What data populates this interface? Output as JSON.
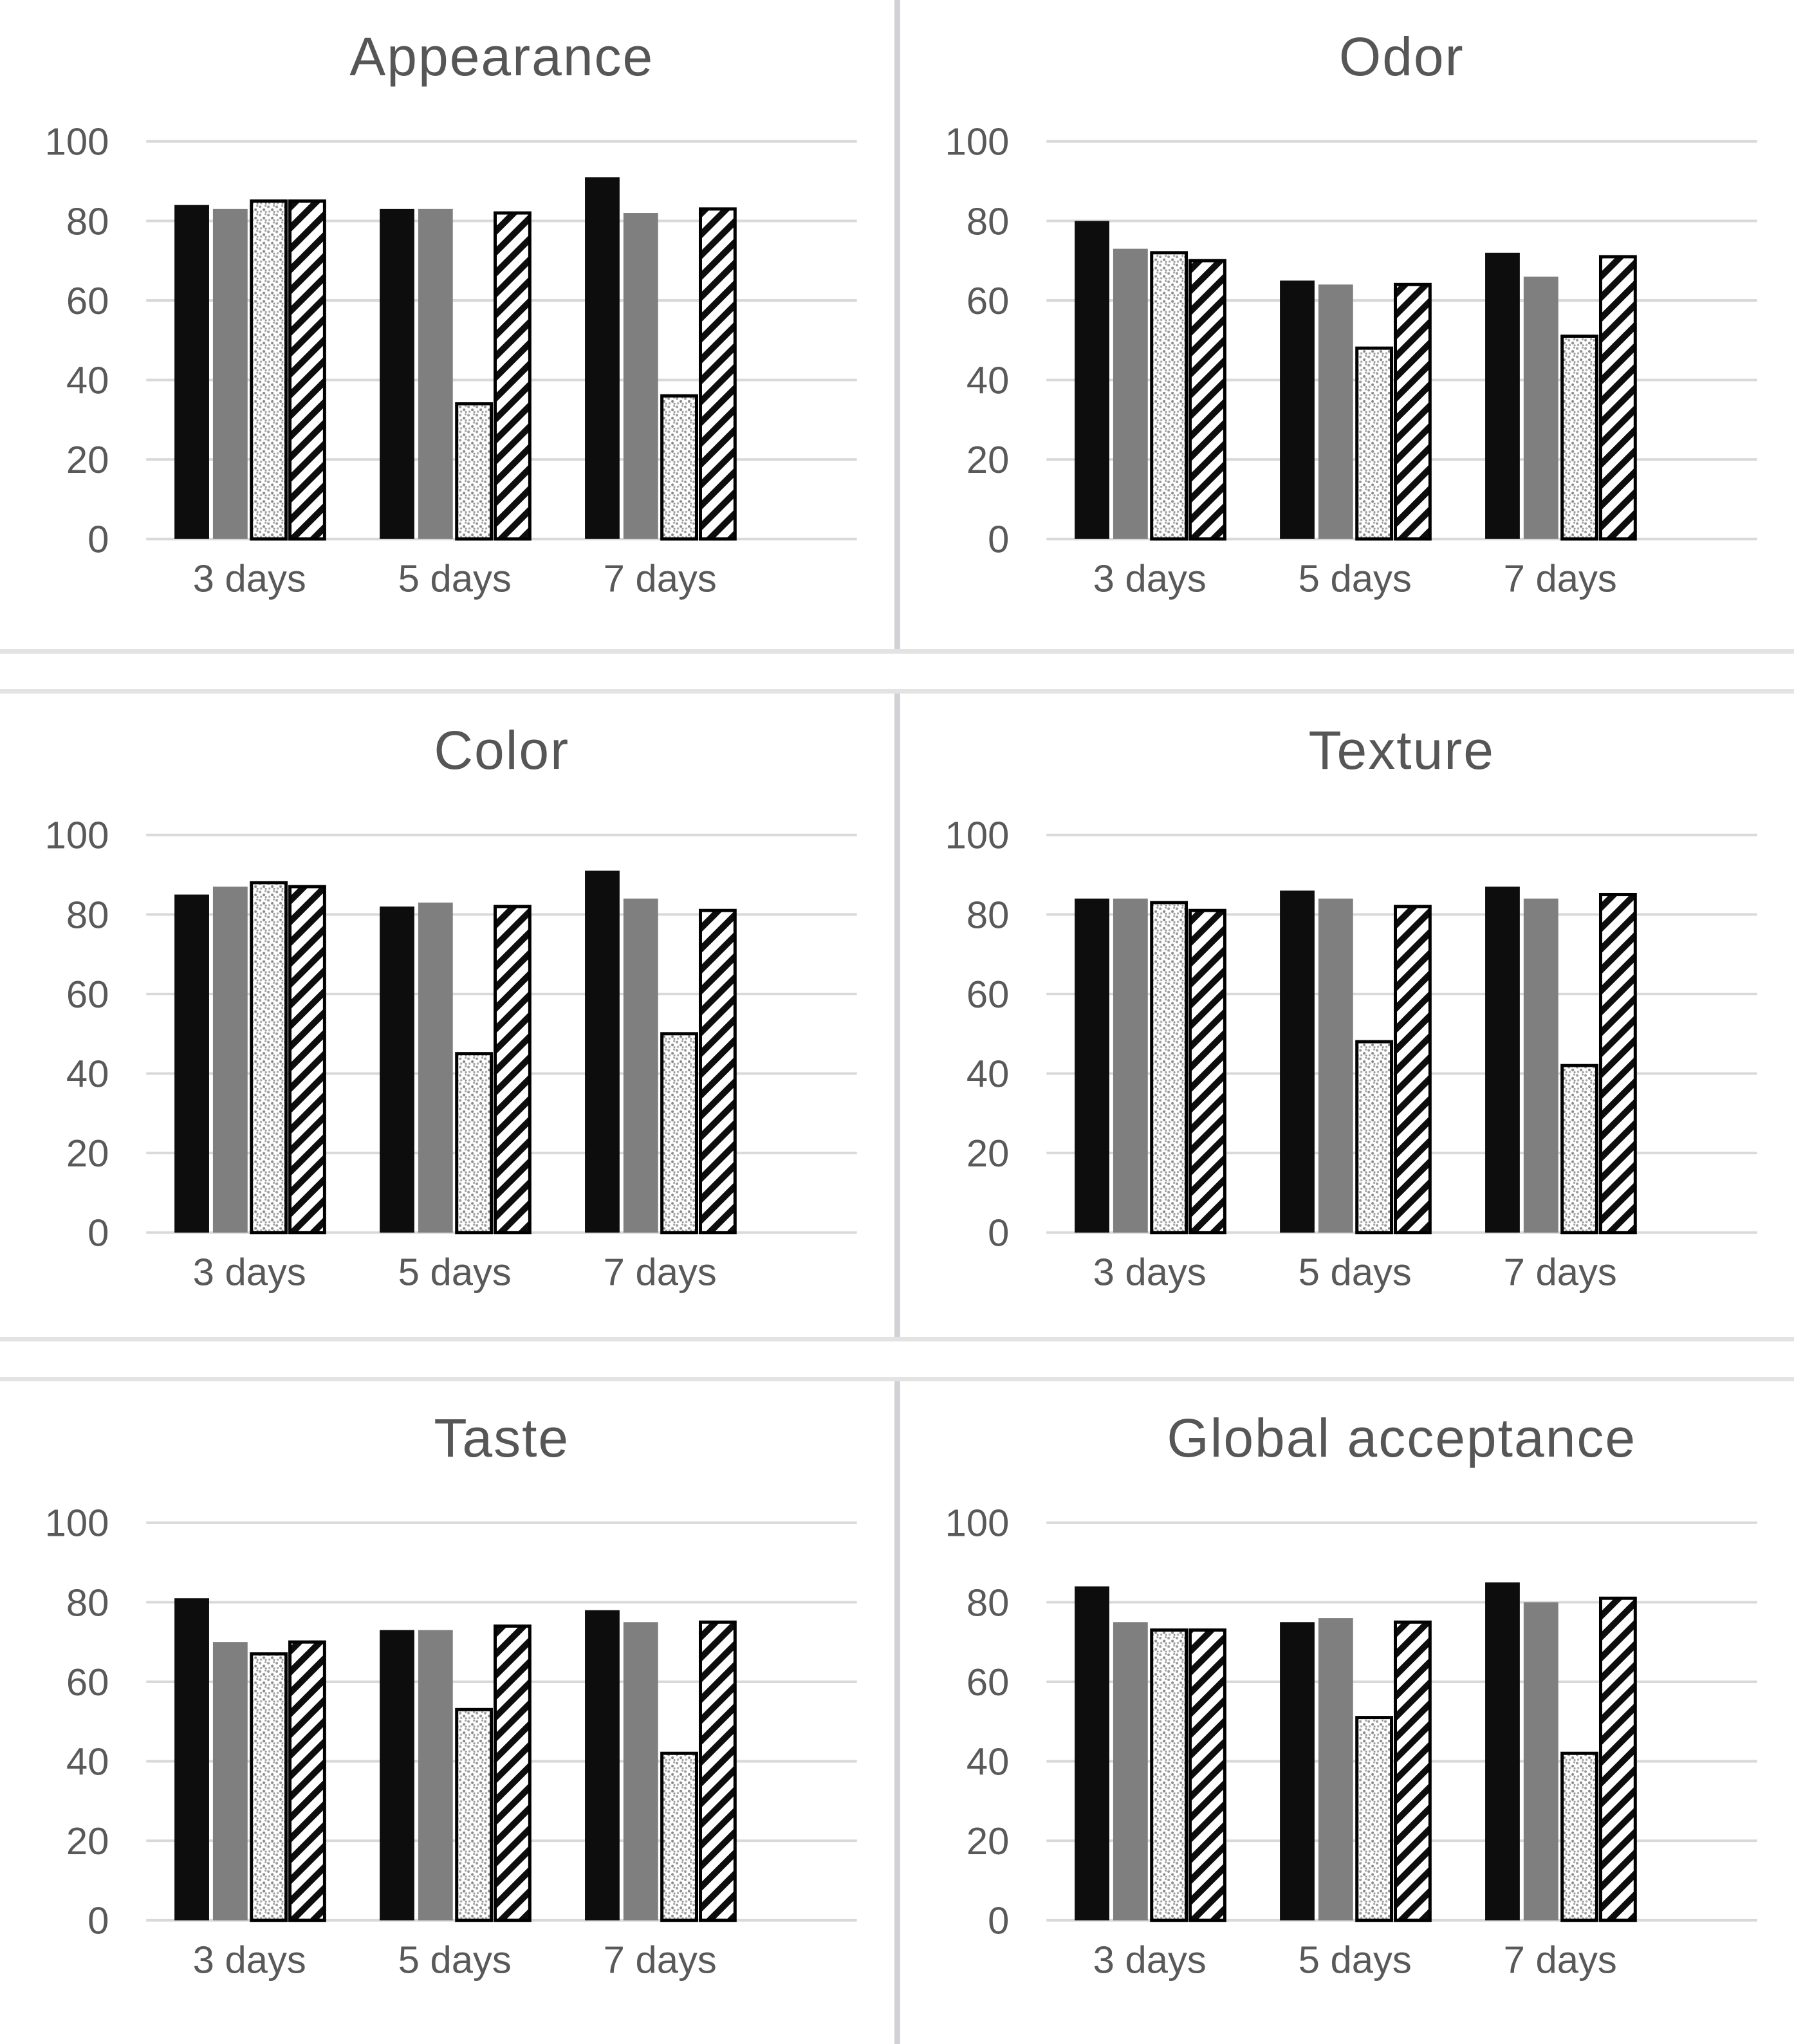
{
  "figure": {
    "description": "Six-panel grouped bar chart figure of sensory scores over storage time",
    "background": "#ffffff"
  },
  "colors": {
    "black_series": "#0d0d0d",
    "gray_series": "#7f7f7f",
    "pattern_stroke": "#000000",
    "pattern_background": "#ffffff",
    "gridline": "#d9d9d9",
    "axis_label": "#595959",
    "title": "#565656",
    "divider_vertical": "#d2d2d6",
    "divider_horizontal": "#e3e3e3"
  },
  "axis": {
    "yticks": [
      0,
      20,
      40,
      60,
      80,
      100
    ],
    "ylim": [
      0,
      100
    ],
    "categories": [
      "3 days",
      "5 days",
      "7 days"
    ],
    "grid": "horizontal",
    "legend": "none"
  },
  "chart_data": [
    {
      "type": "bar",
      "title": "Appearance",
      "categories": [
        "3 days",
        "5 days",
        "7 days"
      ],
      "ylim": [
        0,
        100
      ],
      "yticks": [
        0,
        20,
        40,
        60,
        80,
        100
      ],
      "series": [
        {
          "name": "solid black",
          "pattern": "solid-black",
          "values": [
            84,
            83,
            91
          ]
        },
        {
          "name": "solid gray",
          "pattern": "solid-gray",
          "values": [
            83,
            83,
            82
          ]
        },
        {
          "name": "dotted fill",
          "pattern": "dots",
          "values": [
            85,
            34,
            36
          ]
        },
        {
          "name": "diagonal hatch",
          "pattern": "hatch",
          "values": [
            85,
            82,
            83
          ]
        }
      ]
    },
    {
      "type": "bar",
      "title": "Odor",
      "categories": [
        "3 days",
        "5 days",
        "7 days"
      ],
      "ylim": [
        0,
        100
      ],
      "yticks": [
        0,
        20,
        40,
        60,
        80,
        100
      ],
      "series": [
        {
          "name": "solid black",
          "pattern": "solid-black",
          "values": [
            80,
            65,
            72
          ]
        },
        {
          "name": "solid gray",
          "pattern": "solid-gray",
          "values": [
            73,
            64,
            66
          ]
        },
        {
          "name": "dotted fill",
          "pattern": "dots",
          "values": [
            72,
            48,
            51
          ]
        },
        {
          "name": "diagonal hatch",
          "pattern": "hatch",
          "values": [
            70,
            64,
            71
          ]
        }
      ]
    },
    {
      "type": "bar",
      "title": "Color",
      "categories": [
        "3 days",
        "5 days",
        "7 days"
      ],
      "ylim": [
        0,
        100
      ],
      "yticks": [
        0,
        20,
        40,
        60,
        80,
        100
      ],
      "series": [
        {
          "name": "solid black",
          "pattern": "solid-black",
          "values": [
            85,
            82,
            91
          ]
        },
        {
          "name": "solid gray",
          "pattern": "solid-gray",
          "values": [
            87,
            83,
            84
          ]
        },
        {
          "name": "dotted fill",
          "pattern": "dots",
          "values": [
            88,
            45,
            50
          ]
        },
        {
          "name": "diagonal hatch",
          "pattern": "hatch",
          "values": [
            87,
            82,
            81
          ]
        }
      ]
    },
    {
      "type": "bar",
      "title": "Texture",
      "categories": [
        "3 days",
        "5 days",
        "7 days"
      ],
      "ylim": [
        0,
        100
      ],
      "yticks": [
        0,
        20,
        40,
        60,
        80,
        100
      ],
      "series": [
        {
          "name": "solid black",
          "pattern": "solid-black",
          "values": [
            84,
            86,
            87
          ]
        },
        {
          "name": "solid gray",
          "pattern": "solid-gray",
          "values": [
            84,
            84,
            84
          ]
        },
        {
          "name": "dotted fill",
          "pattern": "dots",
          "values": [
            83,
            48,
            42
          ]
        },
        {
          "name": "diagonal hatch",
          "pattern": "hatch",
          "values": [
            81,
            82,
            85
          ]
        }
      ]
    },
    {
      "type": "bar",
      "title": "Taste",
      "categories": [
        "3 days",
        "5 days",
        "7 days"
      ],
      "ylim": [
        0,
        100
      ],
      "yticks": [
        0,
        20,
        40,
        60,
        80,
        100
      ],
      "series": [
        {
          "name": "solid black",
          "pattern": "solid-black",
          "values": [
            81,
            73,
            78
          ]
        },
        {
          "name": "solid gray",
          "pattern": "solid-gray",
          "values": [
            70,
            73,
            75
          ]
        },
        {
          "name": "dotted fill",
          "pattern": "dots",
          "values": [
            67,
            53,
            42
          ]
        },
        {
          "name": "diagonal hatch",
          "pattern": "hatch",
          "values": [
            70,
            74,
            75
          ]
        }
      ]
    },
    {
      "type": "bar",
      "title": "Global acceptance",
      "categories": [
        "3 days",
        "5 days",
        "7 days"
      ],
      "ylim": [
        0,
        100
      ],
      "yticks": [
        0,
        20,
        40,
        60,
        80,
        100
      ],
      "series": [
        {
          "name": "solid black",
          "pattern": "solid-black",
          "values": [
            84,
            75,
            85
          ]
        },
        {
          "name": "solid gray",
          "pattern": "solid-gray",
          "values": [
            75,
            76,
            80
          ]
        },
        {
          "name": "dotted fill",
          "pattern": "dots",
          "values": [
            73,
            51,
            42
          ]
        },
        {
          "name": "diagonal hatch",
          "pattern": "hatch",
          "values": [
            73,
            75,
            81
          ]
        }
      ]
    }
  ]
}
